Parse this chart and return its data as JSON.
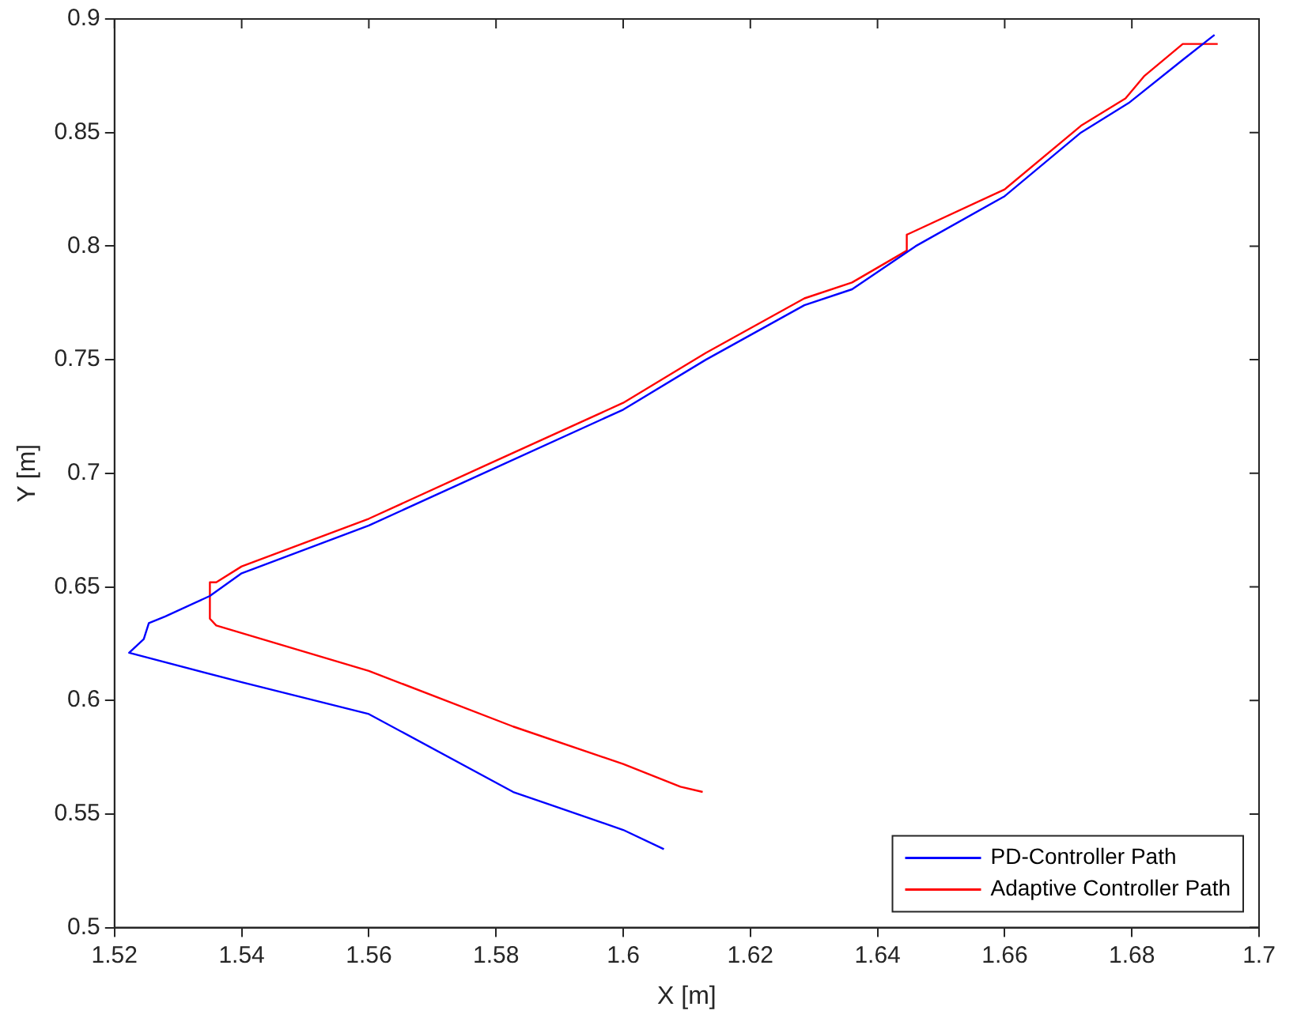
{
  "chart_data": {
    "type": "line",
    "xlabel": "X [m]",
    "ylabel": "Y [m]",
    "xlim": [
      1.52,
      1.7
    ],
    "ylim": [
      0.5,
      0.9
    ],
    "xticks": [
      1.52,
      1.54,
      1.56,
      1.58,
      1.6,
      1.62,
      1.64,
      1.66,
      1.68,
      1.7
    ],
    "yticks": [
      0.5,
      0.55,
      0.6,
      0.65,
      0.7,
      0.75,
      0.8,
      0.85,
      0.9
    ],
    "grid": false,
    "legend": "bottom right",
    "marker": "none",
    "line_style": "solid",
    "series": [
      {
        "name": "PD-Controller Path",
        "color": "#0000ff",
        "x": [
          1.693,
          1.688,
          1.6795,
          1.672,
          1.66,
          1.646,
          1.636,
          1.6285,
          1.613,
          1.6,
          1.578,
          1.56,
          1.54,
          1.535,
          1.528,
          1.5254,
          1.5246,
          1.5223,
          1.54,
          1.56,
          1.5827,
          1.6,
          1.6064
        ],
        "values": [
          0.893,
          0.882,
          0.863,
          0.85,
          0.822,
          0.8,
          0.781,
          0.774,
          0.75,
          0.728,
          0.7,
          0.677,
          0.656,
          0.646,
          0.637,
          0.634,
          0.627,
          0.621,
          0.608,
          0.594,
          0.5597,
          0.543,
          0.5345
        ]
      },
      {
        "name": "Adaptive Controller Path",
        "color": "#ff0000",
        "x": [
          1.6935,
          1.688,
          1.682,
          1.679,
          1.672,
          1.66,
          1.6446,
          1.6446,
          1.636,
          1.6285,
          1.613,
          1.6,
          1.578,
          1.56,
          1.54,
          1.536,
          1.535,
          1.535,
          1.536,
          1.56,
          1.5827,
          1.6,
          1.609,
          1.6125
        ],
        "values": [
          0.889,
          0.889,
          0.875,
          0.865,
          0.853,
          0.825,
          0.805,
          0.798,
          0.784,
          0.777,
          0.753,
          0.731,
          0.703,
          0.68,
          0.659,
          0.652,
          0.652,
          0.636,
          0.633,
          0.613,
          0.5885,
          0.572,
          0.562,
          0.5597
        ]
      }
    ]
  }
}
